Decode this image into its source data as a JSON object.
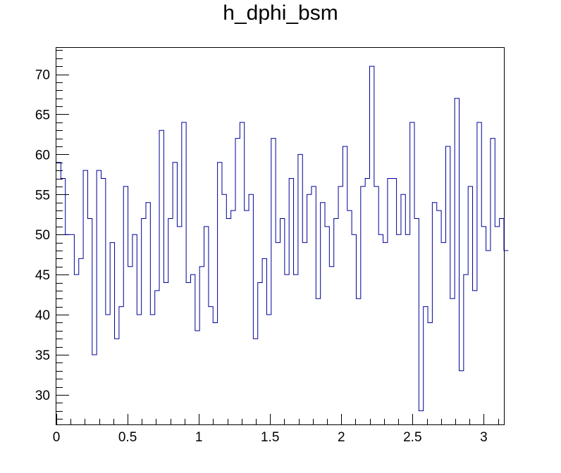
{
  "chart_data": {
    "type": "histogram",
    "title": "h_dphi_bsm",
    "xlabel": "",
    "ylabel": "",
    "xlim": [
      0,
      3.14159
    ],
    "ylim": [
      26.3,
      73.3
    ],
    "bin_width": 0.0314159,
    "x_ticks": [
      "0",
      "0.5",
      "1",
      "1.5",
      "2",
      "2.5",
      "3"
    ],
    "x_tick_values": [
      0,
      0.5,
      1,
      1.5,
      2,
      2.5,
      3
    ],
    "y_ticks": [
      "30",
      "35",
      "40",
      "45",
      "50",
      "55",
      "60",
      "65",
      "70"
    ],
    "y_tick_values": [
      30,
      35,
      40,
      45,
      50,
      55,
      60,
      65,
      70
    ],
    "line_color": "#000099",
    "values": [
      59,
      57,
      50,
      50,
      45,
      47,
      58,
      52,
      35,
      58,
      57,
      40,
      49,
      37,
      41,
      56,
      46,
      50,
      40,
      52,
      54,
      40,
      43,
      63,
      44,
      52,
      59,
      51,
      64,
      44,
      45,
      38,
      46,
      51,
      41,
      39,
      59,
      55,
      52,
      53,
      62,
      64,
      53,
      55,
      37,
      44,
      47,
      40,
      62,
      49,
      52,
      45,
      57,
      45,
      60,
      49,
      55,
      56,
      42,
      54,
      51,
      46,
      52,
      56,
      61,
      53,
      50,
      42,
      56,
      57,
      71,
      56,
      50,
      49,
      57,
      57,
      50,
      55,
      50,
      64,
      52,
      28,
      41,
      39,
      54,
      53,
      49,
      61,
      42,
      67,
      33,
      45,
      56,
      43,
      64,
      51,
      48,
      62,
      51,
      52,
      48
    ]
  }
}
